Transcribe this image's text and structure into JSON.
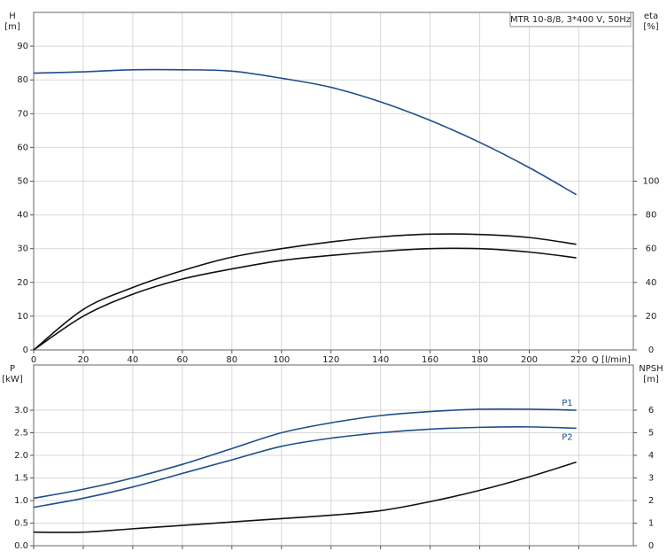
{
  "chart_data": [
    {
      "type": "line",
      "title": "MTR 10-8/8, 3*400 V, 50Hz",
      "ylabel": "H",
      "ylabel_unit": "[m]",
      "y2label": "eta",
      "y2label_unit": "[%]",
      "xlabel": "Q [l/min]",
      "x": [
        0,
        20,
        40,
        60,
        80,
        100,
        120,
        140,
        160,
        180,
        200,
        219
      ],
      "xlim": [
        0,
        242
      ],
      "xticks": [
        0,
        20,
        40,
        60,
        80,
        100,
        120,
        140,
        160,
        180,
        200,
        220
      ],
      "ylim": [
        0,
        100
      ],
      "yticks": [
        0,
        10,
        20,
        30,
        40,
        50,
        60,
        70,
        80,
        90
      ],
      "y2lim": [
        0,
        200
      ],
      "y2ticks": [
        0,
        20,
        40,
        60,
        80,
        100
      ],
      "grid": true,
      "series": [
        {
          "color": "#1f4e8c",
          "values": [
            82,
            82.4,
            83,
            83,
            82.6,
            80.5,
            77.8,
            73.5,
            68,
            61.5,
            54,
            46
          ]
        },
        {
          "color": "#111111",
          "axis": "y2",
          "values": [
            0,
            24,
            37,
            47,
            55,
            60,
            64,
            67,
            68.6,
            68.4,
            66.6,
            62.6
          ]
        },
        {
          "color": "#111111",
          "axis": "y2",
          "values": [
            0,
            20,
            33,
            42,
            48,
            53,
            56,
            58.4,
            60,
            60,
            58,
            54.6
          ]
        }
      ]
    },
    {
      "type": "line",
      "ylabel": "P",
      "ylabel_unit": "[kW]",
      "y2label": "NPSH",
      "y2label_unit": "[m]",
      "x": [
        0,
        20,
        40,
        60,
        80,
        100,
        120,
        140,
        160,
        180,
        200,
        219
      ],
      "xlim": [
        0,
        242
      ],
      "xticks": [
        0,
        20,
        40,
        60,
        80,
        100,
        120,
        140,
        160,
        180,
        200,
        220
      ],
      "ylim": [
        0,
        4
      ],
      "yticks": [
        {
          "value": 0,
          "label": "0.0"
        },
        0.5,
        {
          "value": 1,
          "label": "1.0"
        },
        1.5,
        {
          "value": 2,
          "label": "2.0"
        },
        2.5,
        {
          "value": 3,
          "label": "3.0"
        }
      ],
      "y2lim": [
        0,
        8
      ],
      "y2ticks": [
        0,
        1,
        2,
        3,
        4,
        5,
        6
      ],
      "grid": true,
      "series": [
        {
          "name": "P1",
          "color": "#1f4e8c",
          "values": [
            1.05,
            1.25,
            1.5,
            1.8,
            2.15,
            2.5,
            2.72,
            2.88,
            2.97,
            3.02,
            3.02,
            3.0
          ]
        },
        {
          "name": "P2",
          "color": "#1f4e8c",
          "values": [
            0.85,
            1.05,
            1.3,
            1.6,
            1.9,
            2.2,
            2.38,
            2.5,
            2.58,
            2.62,
            2.63,
            2.6
          ]
        },
        {
          "color": "#111111",
          "axis": "y2",
          "values": [
            0.6,
            0.6,
            0.75,
            0.9,
            1.05,
            1.2,
            1.35,
            1.55,
            1.95,
            2.45,
            3.05,
            3.7
          ]
        }
      ]
    }
  ]
}
